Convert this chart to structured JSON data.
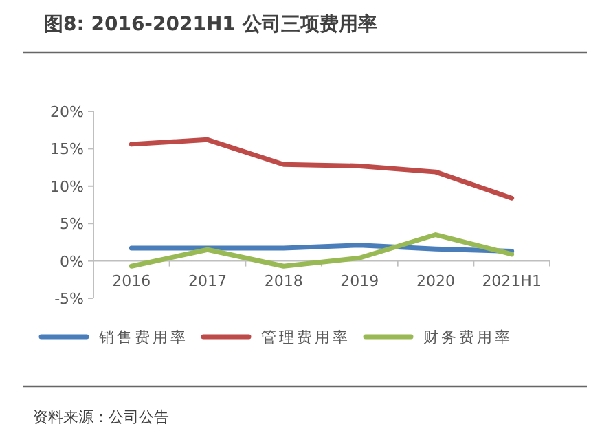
{
  "chart_data": {
    "type": "line",
    "title": "图8: 2016-2021H1 公司三项费用率",
    "categories": [
      "2016",
      "2017",
      "2018",
      "2019",
      "2020",
      "2021H1"
    ],
    "series": [
      {
        "name": "销售费用率",
        "color": "#4a7ebb",
        "values": [
          1.7,
          1.7,
          1.7,
          2.1,
          1.6,
          1.3
        ]
      },
      {
        "name": "管理费用率",
        "color": "#be4b48",
        "values": [
          15.6,
          16.2,
          12.9,
          12.7,
          11.9,
          8.4
        ]
      },
      {
        "name": "财务费用率",
        "color": "#98b954",
        "values": [
          -0.7,
          1.5,
          -0.7,
          0.4,
          3.5,
          0.9
        ]
      }
    ],
    "ylim": [
      -5,
      20
    ],
    "yticks": [
      {
        "value": -5,
        "label": "-5%"
      },
      {
        "value": 0,
        "label": "0%"
      },
      {
        "value": 5,
        "label": "5%"
      },
      {
        "value": 10,
        "label": "10%"
      },
      {
        "value": 15,
        "label": "15%"
      },
      {
        "value": 20,
        "label": "20%"
      }
    ],
    "grid": false,
    "legend": "bottom",
    "marker": "none",
    "line_style": "solid",
    "annotations": [
      "资料来源：公司公告"
    ]
  }
}
